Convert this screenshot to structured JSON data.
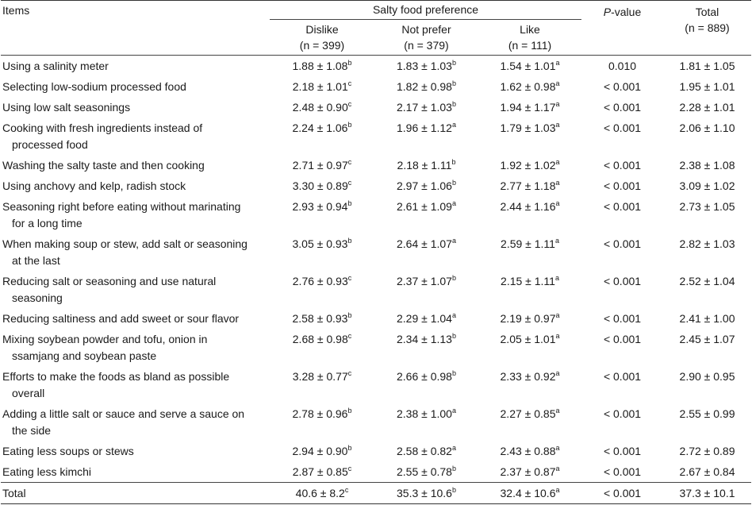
{
  "header": {
    "items_label": "Items",
    "group_label": "Salty food preference",
    "groups": [
      {
        "name": "Dislike",
        "n": "(n = 399)"
      },
      {
        "name": "Not prefer",
        "n": "(n = 379)"
      },
      {
        "name": "Like",
        "n": "(n = 111)"
      }
    ],
    "p_label_italic": "P",
    "p_label_rest": "-value",
    "total_label": "Total",
    "total_n": "(n = 889)"
  },
  "rows": [
    {
      "item": [
        "Using a salinity meter"
      ],
      "dislike": [
        "1.88 ± 1.08",
        "b"
      ],
      "notprefer": [
        "1.83 ± 1.03",
        "b"
      ],
      "like": [
        "1.54 ± 1.01",
        "a"
      ],
      "p": "0.010",
      "total": "1.81 ± 1.05"
    },
    {
      "item": [
        "Selecting low-sodium processed food"
      ],
      "dislike": [
        "2.18 ± 1.01",
        "c"
      ],
      "notprefer": [
        "1.82 ± 0.98",
        "b"
      ],
      "like": [
        "1.62 ± 0.98",
        "a"
      ],
      "p": "< 0.001",
      "total": "1.95 ± 1.01"
    },
    {
      "item": [
        "Using low salt seasonings"
      ],
      "dislike": [
        "2.48 ± 0.90",
        "c"
      ],
      "notprefer": [
        "2.17 ± 1.03",
        "b"
      ],
      "like": [
        "1.94 ± 1.17",
        "a"
      ],
      "p": "< 0.001",
      "total": "2.28 ± 1.01"
    },
    {
      "item": [
        "Cooking with fresh ingredients instead of",
        "processed food"
      ],
      "dislike": [
        "2.24 ± 1.06",
        "b"
      ],
      "notprefer": [
        "1.96 ± 1.12",
        "a"
      ],
      "like": [
        "1.79 ± 1.03",
        "a"
      ],
      "p": "< 0.001",
      "total": "2.06 ± 1.10"
    },
    {
      "item": [
        "Washing the salty taste and then cooking"
      ],
      "dislike": [
        "2.71 ± 0.97",
        "c"
      ],
      "notprefer": [
        "2.18 ± 1.11",
        "b"
      ],
      "like": [
        "1.92 ± 1.02",
        "a"
      ],
      "p": "< 0.001",
      "total": "2.38 ± 1.08"
    },
    {
      "item": [
        "Using anchovy and kelp, radish stock"
      ],
      "dislike": [
        "3.30 ± 0.89",
        "c"
      ],
      "notprefer": [
        "2.97 ± 1.06",
        "b"
      ],
      "like": [
        "2.77 ± 1.18",
        "a"
      ],
      "p": "< 0.001",
      "total": "3.09 ± 1.02"
    },
    {
      "item": [
        "Seasoning right before eating without marinating",
        "for a long time"
      ],
      "dislike": [
        "2.93 ± 0.94",
        "b"
      ],
      "notprefer": [
        "2.61 ± 1.09",
        "a"
      ],
      "like": [
        "2.44 ± 1.16",
        "a"
      ],
      "p": "< 0.001",
      "total": "2.73 ± 1.05"
    },
    {
      "item": [
        "When making soup or stew, add salt or seasoning",
        "at the last"
      ],
      "dislike": [
        "3.05 ± 0.93",
        "b"
      ],
      "notprefer": [
        "2.64 ± 1.07",
        "a"
      ],
      "like": [
        "2.59 ± 1.11",
        "a"
      ],
      "p": "< 0.001",
      "total": "2.82 ± 1.03"
    },
    {
      "item": [
        "Reducing salt or seasoning and use natural",
        "seasoning"
      ],
      "dislike": [
        "2.76 ± 0.93",
        "c"
      ],
      "notprefer": [
        "2.37 ± 1.07",
        "b"
      ],
      "like": [
        "2.15 ± 1.11",
        "a"
      ],
      "p": "< 0.001",
      "total": "2.52 ± 1.04"
    },
    {
      "item": [
        "Reducing saltiness and add sweet or sour flavor"
      ],
      "dislike": [
        "2.58 ± 0.93",
        "b"
      ],
      "notprefer": [
        "2.29 ± 1.04",
        "a"
      ],
      "like": [
        "2.19 ± 0.97",
        "a"
      ],
      "p": "< 0.001",
      "total": "2.41 ± 1.00"
    },
    {
      "item": [
        "Mixing soybean powder and tofu, onion in",
        "ssamjang and soybean paste"
      ],
      "dislike": [
        "2.68 ± 0.98",
        "c"
      ],
      "notprefer": [
        "2.34 ± 1.13",
        "b"
      ],
      "like": [
        "2.05 ± 1.01",
        "a"
      ],
      "p": "< 0.001",
      "total": "2.45 ± 1.07"
    },
    {
      "item": [
        "Efforts to make the foods as bland as possible",
        "overall"
      ],
      "dislike": [
        "3.28 ± 0.77",
        "c"
      ],
      "notprefer": [
        "2.66 ± 0.98",
        "b"
      ],
      "like": [
        "2.33 ± 0.92",
        "a"
      ],
      "p": "< 0.001",
      "total": "2.90 ± 0.95"
    },
    {
      "item": [
        "Adding a little salt or sauce and serve a sauce on",
        "the side"
      ],
      "dislike": [
        "2.78 ± 0.96",
        "b"
      ],
      "notprefer": [
        "2.38 ± 1.00",
        "a"
      ],
      "like": [
        "2.27 ± 0.85",
        "a"
      ],
      "p": "< 0.001",
      "total": "2.55 ± 0.99"
    },
    {
      "item": [
        "Eating less soups or stews"
      ],
      "dislike": [
        "2.94 ± 0.90",
        "b"
      ],
      "notprefer": [
        "2.58 ± 0.82",
        "a"
      ],
      "like": [
        "2.43 ± 0.88",
        "a"
      ],
      "p": "< 0.001",
      "total": "2.72 ± 0.89"
    },
    {
      "item": [
        "Eating less kimchi"
      ],
      "dislike": [
        "2.87 ± 0.85",
        "c"
      ],
      "notprefer": [
        "2.55 ± 0.78",
        "b"
      ],
      "like": [
        "2.37 ± 0.87",
        "a"
      ],
      "p": "< 0.001",
      "total": "2.67 ± 0.84"
    },
    {
      "item": [
        "Total"
      ],
      "dislike": [
        "40.6 ± 8.2",
        "c"
      ],
      "notprefer": [
        "35.3 ± 10.6",
        "b"
      ],
      "like": [
        "32.4 ± 10.6",
        "a"
      ],
      "p": "< 0.001",
      "total": "37.3 ± 10.1"
    }
  ]
}
